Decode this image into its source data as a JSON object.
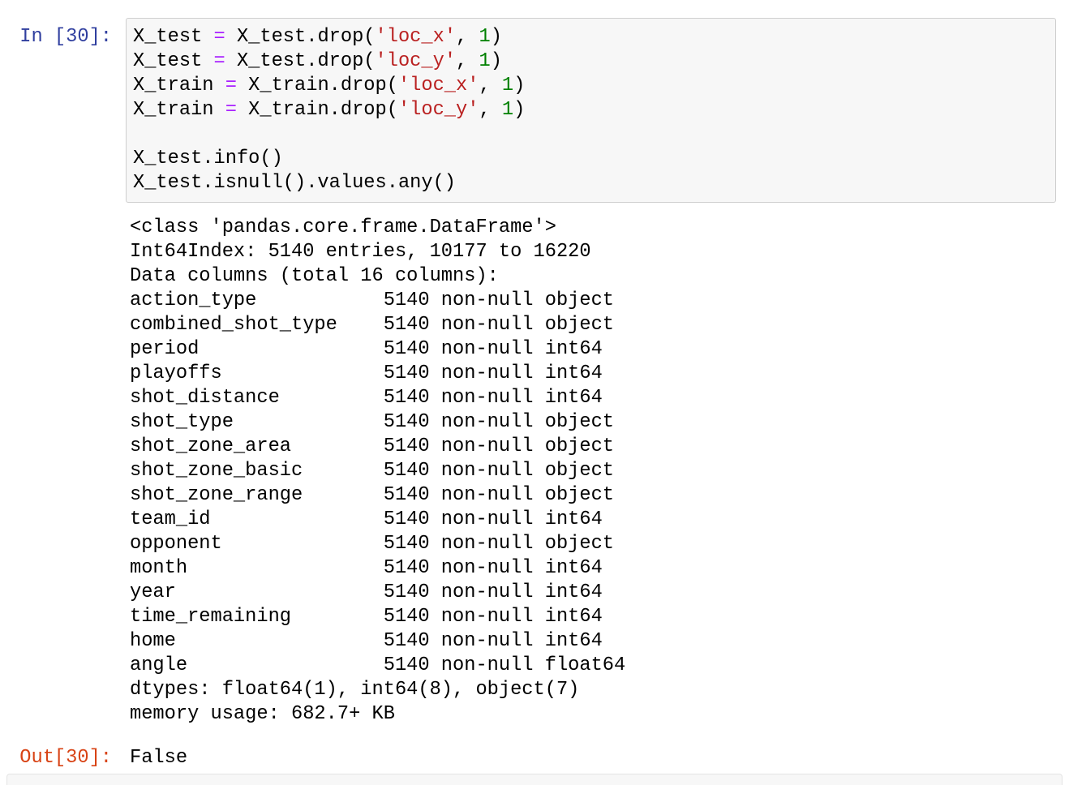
{
  "colors": {
    "in_prompt": "#303F9F",
    "out_prompt": "#D84315",
    "operator": "#AA22FF",
    "string": "#BA2121",
    "number": "#008000",
    "cell_background": "#F7F7F7",
    "cell_border": "#CFCFCF"
  },
  "cell": {
    "in_prompt": "In [30]:",
    "out_prompt": "Out[30]:",
    "out_value": "False",
    "code_lines": [
      [
        [
          "p",
          "X_test "
        ],
        [
          "o",
          "="
        ],
        [
          "p",
          " X_test.drop("
        ],
        [
          "s",
          "'loc_x'"
        ],
        [
          "p",
          ", "
        ],
        [
          "n",
          "1"
        ],
        [
          "p",
          ")"
        ]
      ],
      [
        [
          "p",
          "X_test "
        ],
        [
          "o",
          "="
        ],
        [
          "p",
          " X_test.drop("
        ],
        [
          "s",
          "'loc_y'"
        ],
        [
          "p",
          ", "
        ],
        [
          "n",
          "1"
        ],
        [
          "p",
          ")"
        ]
      ],
      [
        [
          "p",
          "X_train "
        ],
        [
          "o",
          "="
        ],
        [
          "p",
          " X_train.drop("
        ],
        [
          "s",
          "'loc_x'"
        ],
        [
          "p",
          ", "
        ],
        [
          "n",
          "1"
        ],
        [
          "p",
          ")"
        ]
      ],
      [
        [
          "p",
          "X_train "
        ],
        [
          "o",
          "="
        ],
        [
          "p",
          " X_train.drop("
        ],
        [
          "s",
          "'loc_y'"
        ],
        [
          "p",
          ", "
        ],
        [
          "n",
          "1"
        ],
        [
          "p",
          ")"
        ]
      ],
      [],
      [
        [
          "p",
          "X_test.info()"
        ]
      ],
      [
        [
          "p",
          "X_test.isnull().values.any()"
        ]
      ]
    ]
  },
  "info_output": {
    "class_line": "<class 'pandas.core.frame.DataFrame'>",
    "index_line": "Int64Index: 5140 entries, 10177 to 16220",
    "header_line": "Data columns (total 16 columns):",
    "name_pad": 22,
    "columns": [
      {
        "name": "action_type",
        "count": "5140",
        "non_null": "non-null",
        "dtype": "object"
      },
      {
        "name": "combined_shot_type",
        "count": "5140",
        "non_null": "non-null",
        "dtype": "object"
      },
      {
        "name": "period",
        "count": "5140",
        "non_null": "non-null",
        "dtype": "int64"
      },
      {
        "name": "playoffs",
        "count": "5140",
        "non_null": "non-null",
        "dtype": "int64"
      },
      {
        "name": "shot_distance",
        "count": "5140",
        "non_null": "non-null",
        "dtype": "int64"
      },
      {
        "name": "shot_type",
        "count": "5140",
        "non_null": "non-null",
        "dtype": "object"
      },
      {
        "name": "shot_zone_area",
        "count": "5140",
        "non_null": "non-null",
        "dtype": "object"
      },
      {
        "name": "shot_zone_basic",
        "count": "5140",
        "non_null": "non-null",
        "dtype": "object"
      },
      {
        "name": "shot_zone_range",
        "count": "5140",
        "non_null": "non-null",
        "dtype": "object"
      },
      {
        "name": "team_id",
        "count": "5140",
        "non_null": "non-null",
        "dtype": "int64"
      },
      {
        "name": "opponent",
        "count": "5140",
        "non_null": "non-null",
        "dtype": "object"
      },
      {
        "name": "month",
        "count": "5140",
        "non_null": "non-null",
        "dtype": "int64"
      },
      {
        "name": "year",
        "count": "5140",
        "non_null": "non-null",
        "dtype": "int64"
      },
      {
        "name": "time_remaining",
        "count": "5140",
        "non_null": "non-null",
        "dtype": "int64"
      },
      {
        "name": "home",
        "count": "5140",
        "non_null": "non-null",
        "dtype": "int64"
      },
      {
        "name": "angle",
        "count": "5140",
        "non_null": "non-null",
        "dtype": "float64"
      }
    ],
    "dtypes_line": "dtypes: float64(1), int64(8), object(7)",
    "memory_line": "memory usage: 682.7+ KB"
  }
}
